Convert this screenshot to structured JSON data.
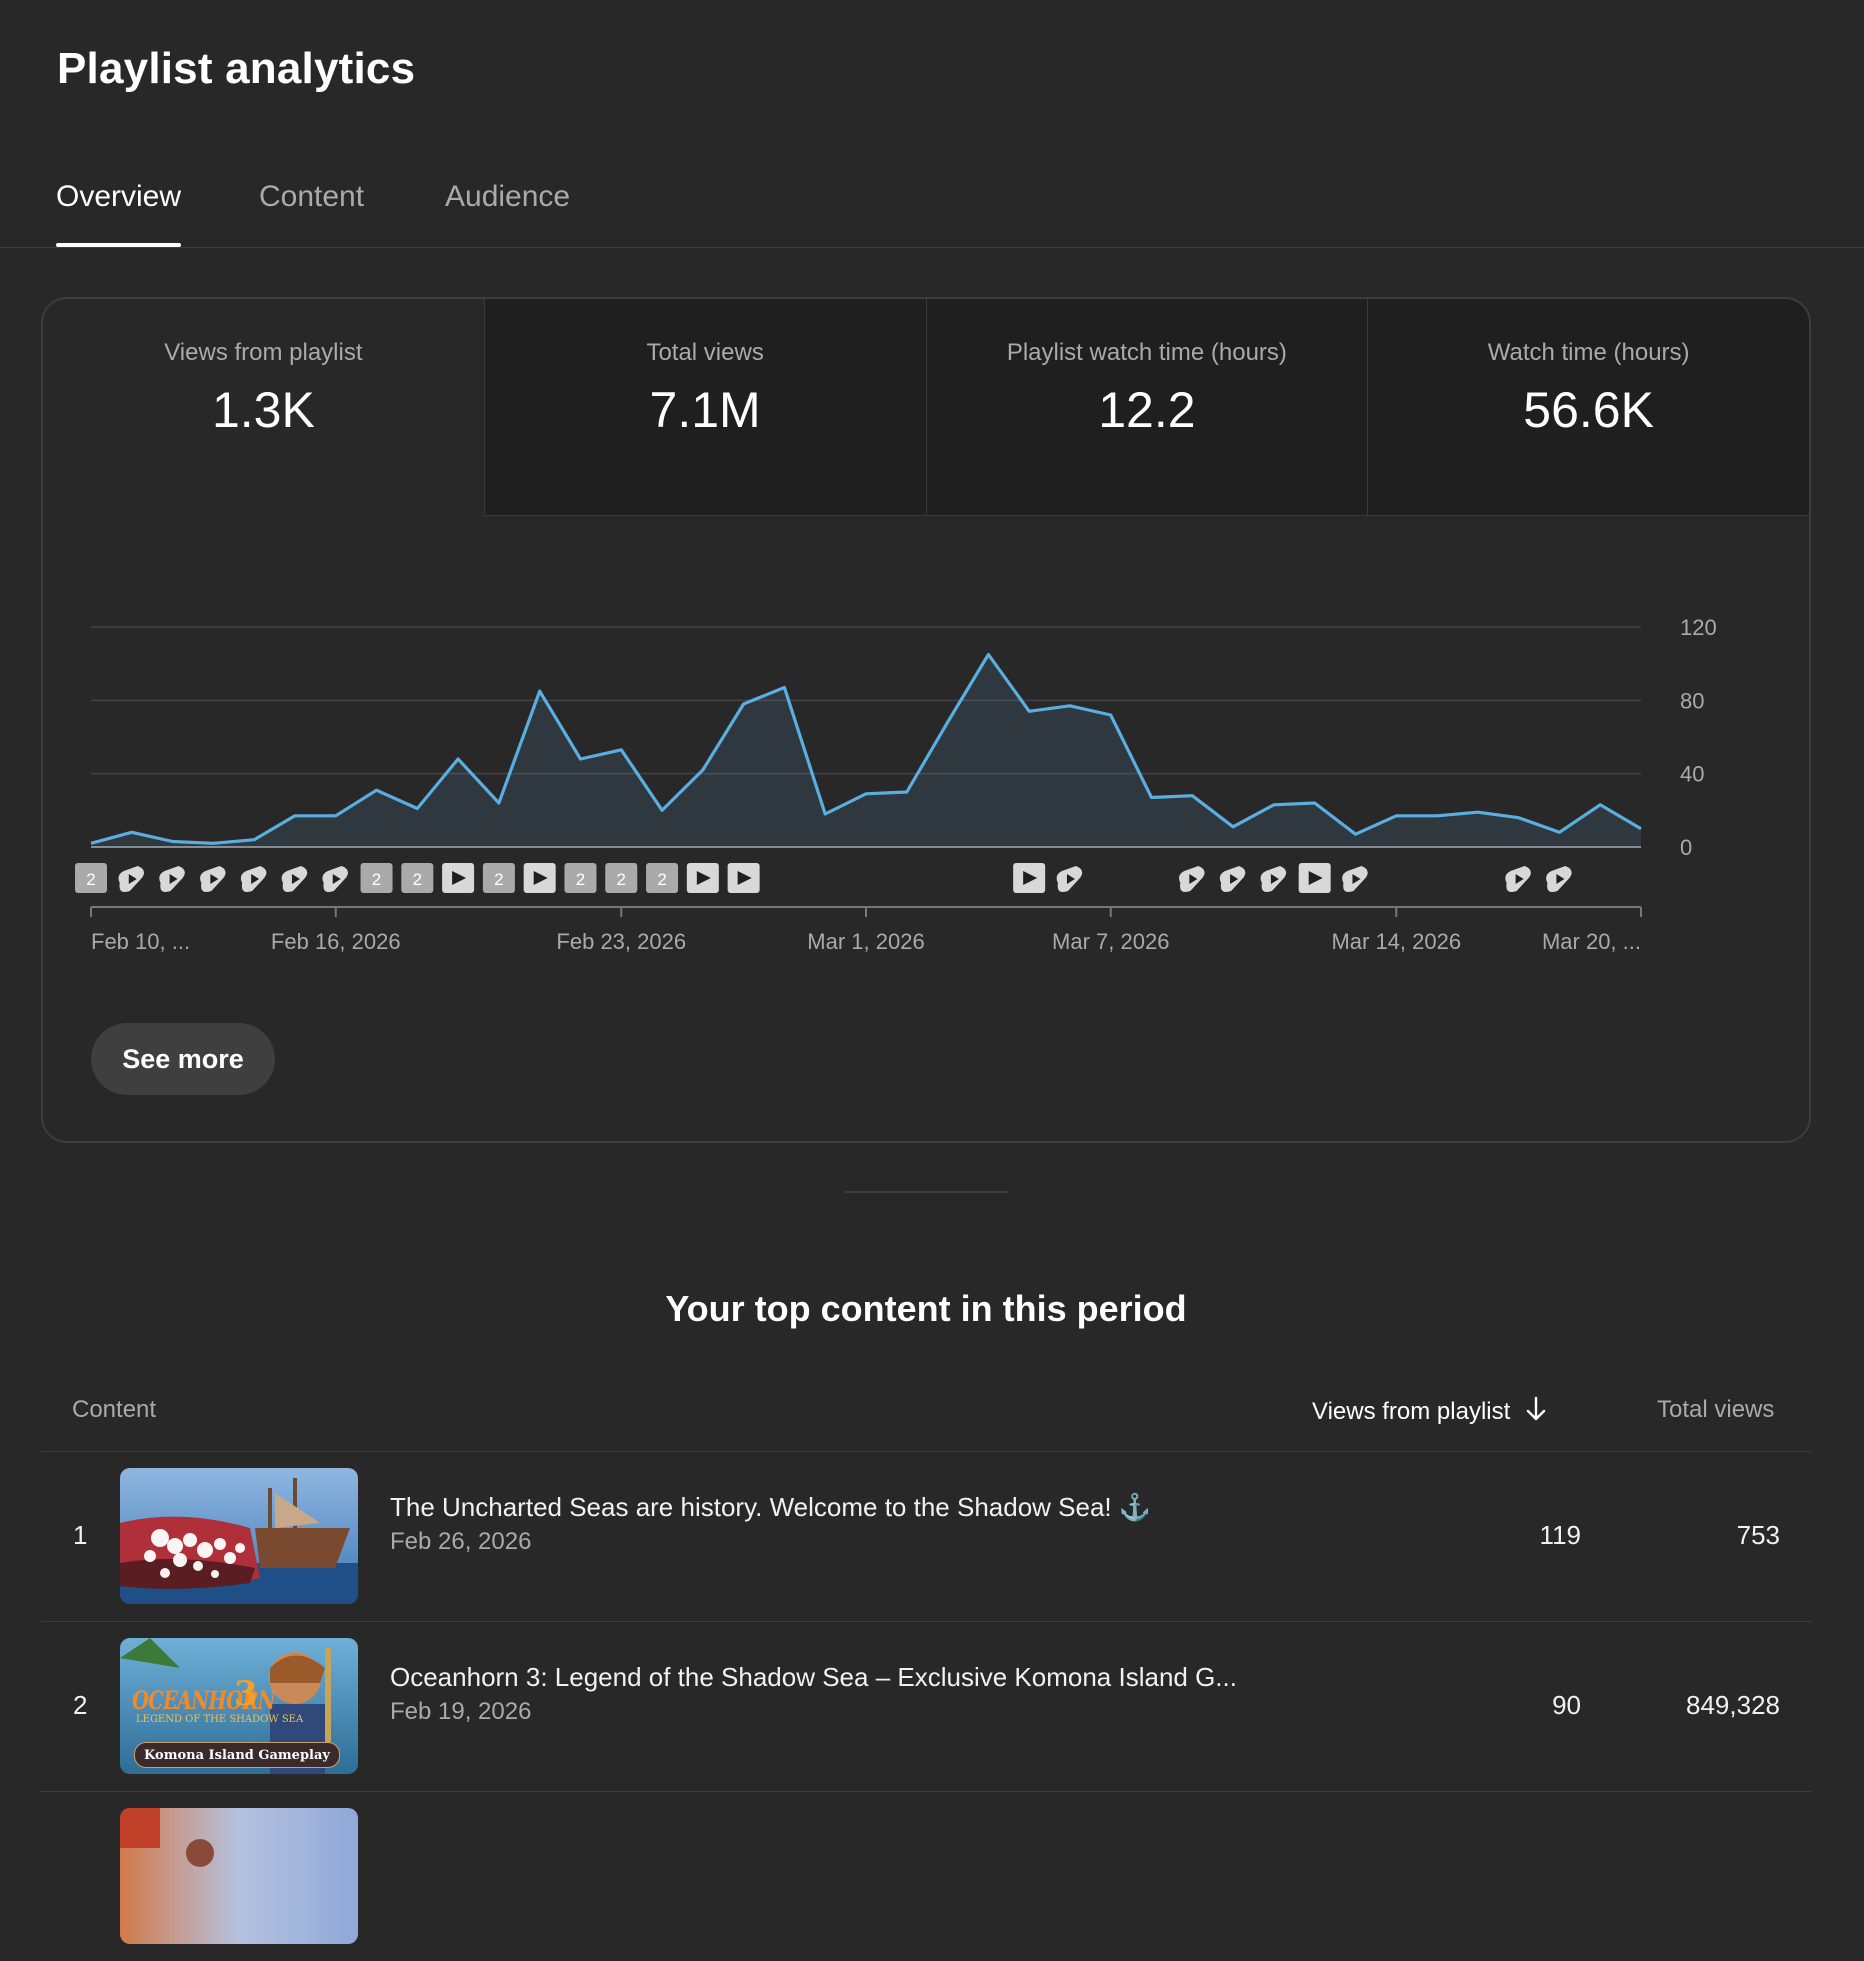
{
  "header": {
    "title": "Playlist analytics"
  },
  "tabs": [
    {
      "label": "Overview",
      "active": true
    },
    {
      "label": "Content",
      "active": false
    },
    {
      "label": "Audience",
      "active": false
    }
  ],
  "metrics": [
    {
      "label": "Views from playlist",
      "value": "1.3K"
    },
    {
      "label": "Total views",
      "value": "7.1M"
    },
    {
      "label": "Playlist watch time (hours)",
      "value": "12.2"
    },
    {
      "label": "Watch time (hours)",
      "value": "56.6K"
    }
  ],
  "chart_data": {
    "type": "area",
    "series": [
      {
        "values": [
          2,
          8,
          3,
          2,
          4,
          17,
          17,
          31,
          21,
          48,
          24,
          85,
          48,
          53,
          20,
          42,
          78,
          87,
          18,
          29,
          30,
          68,
          105,
          74,
          77,
          72,
          27,
          28,
          11,
          23,
          24,
          7,
          17,
          17,
          19,
          16,
          8,
          23,
          10
        ]
      }
    ],
    "x_tick_labels": [
      "Feb 10, ...",
      "Feb 16, 2026",
      "Feb 23, 2026",
      "Mar 1, 2026",
      "Mar 7, 2026",
      "Mar 14, 2026",
      "Mar 20, ..."
    ],
    "y_tick_labels": [
      "0",
      "40",
      "80",
      "120"
    ],
    "ylim": [
      0,
      120
    ],
    "grid": true,
    "line_color": "#5aaee0",
    "markers": [
      {
        "i": 0,
        "kind": "count",
        "label": "2"
      },
      {
        "i": 1,
        "kind": "short"
      },
      {
        "i": 2,
        "kind": "short"
      },
      {
        "i": 3,
        "kind": "short"
      },
      {
        "i": 4,
        "kind": "short"
      },
      {
        "i": 5,
        "kind": "short"
      },
      {
        "i": 6,
        "kind": "short"
      },
      {
        "i": 7,
        "kind": "count",
        "label": "2"
      },
      {
        "i": 8,
        "kind": "count",
        "label": "2"
      },
      {
        "i": 9,
        "kind": "video"
      },
      {
        "i": 10,
        "kind": "count",
        "label": "2"
      },
      {
        "i": 11,
        "kind": "video"
      },
      {
        "i": 12,
        "kind": "count",
        "label": "2"
      },
      {
        "i": 13,
        "kind": "count",
        "label": "2"
      },
      {
        "i": 14,
        "kind": "count",
        "label": "2"
      },
      {
        "i": 15,
        "kind": "video"
      },
      {
        "i": 16,
        "kind": "video"
      },
      {
        "i": 23,
        "kind": "video"
      },
      {
        "i": 24,
        "kind": "short"
      },
      {
        "i": 27,
        "kind": "short"
      },
      {
        "i": 28,
        "kind": "short"
      },
      {
        "i": 29,
        "kind": "short"
      },
      {
        "i": 30,
        "kind": "video"
      },
      {
        "i": 31,
        "kind": "short"
      },
      {
        "i": 35,
        "kind": "short"
      },
      {
        "i": 36,
        "kind": "short"
      }
    ]
  },
  "see_more_label": "See more",
  "top_content": {
    "title": "Your top content in this period",
    "columns": {
      "content": "Content",
      "views_from_playlist": "Views from playlist",
      "total_views": "Total views"
    },
    "rows": [
      {
        "rank": "1",
        "title": "The Uncharted Seas are history. Welcome to the Shadow Sea! ⚓",
        "date": "Feb 26, 2026",
        "views_from_playlist": "119",
        "total_views": "753"
      },
      {
        "rank": "2",
        "title": "Oceanhorn 3: Legend of the Shadow Sea – Exclusive Komona Island G...",
        "date": "Feb 19, 2026",
        "views_from_playlist": "90",
        "total_views": "849,328",
        "thumb_text": {
          "logo": "OCEANHORN",
          "logo_number": "3",
          "subtitle": "LEGEND OF THE SHADOW SEA",
          "banner": "Komona Island Gameplay"
        }
      }
    ]
  }
}
